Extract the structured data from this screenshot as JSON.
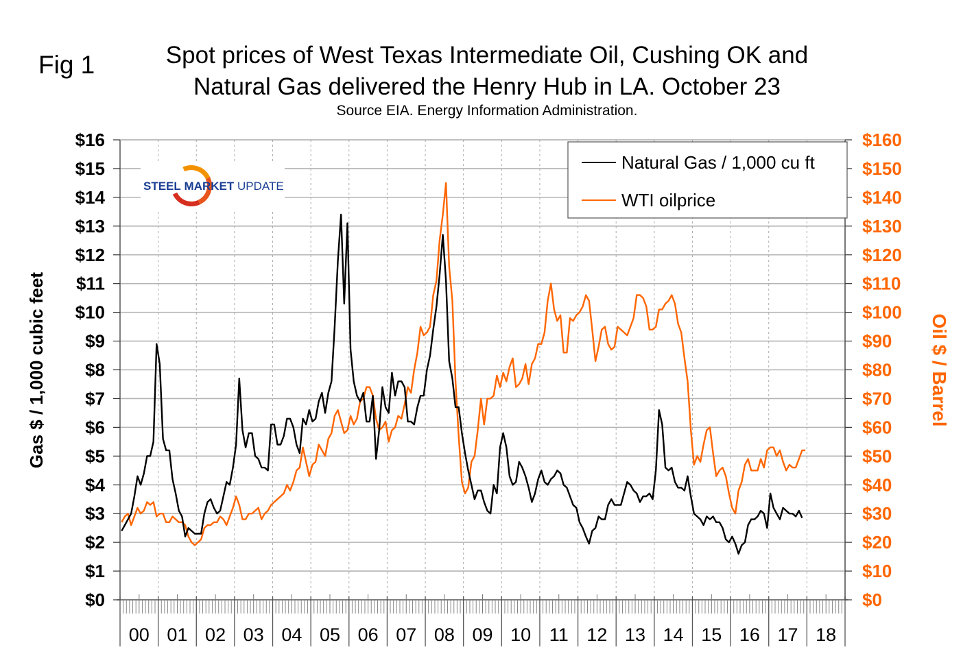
{
  "figure_label": "Fig 1",
  "logo": {
    "word1": "STEEL",
    "word2": "MARKET",
    "word3": "UPDATE"
  },
  "chart_data": {
    "type": "line",
    "title": "Spot prices of West Texas Intermediate Oil, Cushing OK and Natural Gas delivered the Henry Hub in LA. October 23",
    "title_line1": "Spot prices of West Texas Intermediate Oil, Cushing OK and",
    "title_line2": "Natural Gas delivered the Henry Hub in LA. October 23",
    "subtitle": "Source EIA. Energy Information Administration.",
    "ylabel_left": "Gas $ / 1,000 cubic feet",
    "ylabel_right": "Oil $ / Barrel",
    "ylim_left": [
      0,
      16
    ],
    "ylim_right": [
      0,
      160
    ],
    "yticks_left": [
      "$0",
      "$1",
      "$2",
      "$3",
      "$4",
      "$5",
      "$6",
      "$7",
      "$8",
      "$9",
      "$10",
      "$11",
      "$12",
      "$13",
      "$14",
      "$15",
      "$16"
    ],
    "yticks_right": [
      "$0",
      "$10",
      "$20",
      "$30",
      "$40",
      "$50",
      "$60",
      "$70",
      "$80",
      "$90",
      "$100",
      "$110",
      "$120",
      "$130",
      "$140",
      "$150",
      "$160"
    ],
    "x_categories": [
      "00",
      "01",
      "02",
      "03",
      "04",
      "05",
      "06",
      "07",
      "08",
      "09",
      "10",
      "11",
      "12",
      "13",
      "14",
      "15",
      "16",
      "17",
      "18"
    ],
    "x_unit": "monthly, Jan 2000 onward",
    "grid": true,
    "legend_position": "top-right",
    "series": [
      {
        "name": "Natural Gas / 1,000 cu ft",
        "axis": "left",
        "color": "#000000",
        "values": [
          2.4,
          2.6,
          2.8,
          3.0,
          3.6,
          4.3,
          4.0,
          4.4,
          5.0,
          5.0,
          5.5,
          8.9,
          8.2,
          5.6,
          5.2,
          5.2,
          4.2,
          3.7,
          3.1,
          2.9,
          2.2,
          2.5,
          2.4,
          2.3,
          2.3,
          2.3,
          3.0,
          3.4,
          3.5,
          3.2,
          3.0,
          3.1,
          3.6,
          4.1,
          4.0,
          4.6,
          5.4,
          7.7,
          5.9,
          5.3,
          5.8,
          5.8,
          5.0,
          4.9,
          4.6,
          4.6,
          4.5,
          6.1,
          6.1,
          5.4,
          5.4,
          5.7,
          6.3,
          6.3,
          6.0,
          5.4,
          5.1,
          6.3,
          6.1,
          6.6,
          6.2,
          6.3,
          6.9,
          7.2,
          6.5,
          7.2,
          7.6,
          9.5,
          11.8,
          13.4,
          10.3,
          13.1,
          8.7,
          7.6,
          7.1,
          6.9,
          7.2,
          6.2,
          6.2,
          7.1,
          4.9,
          5.9,
          7.4,
          6.7,
          6.5,
          7.9,
          7.1,
          7.6,
          7.6,
          7.4,
          6.2,
          6.2,
          6.1,
          6.7,
          7.1,
          7.1,
          8.0,
          8.5,
          9.4,
          10.2,
          11.3,
          12.7,
          11.1,
          8.3,
          7.7,
          6.7,
          6.7,
          5.8,
          5.1,
          4.5,
          4.0,
          3.5,
          3.8,
          3.8,
          3.4,
          3.1,
          3.0,
          4.0,
          3.7,
          5.3,
          5.8,
          5.3,
          4.3,
          4.0,
          4.1,
          4.8,
          4.6,
          4.3,
          3.9,
          3.4,
          3.7,
          4.2,
          4.5,
          4.1,
          4.0,
          4.2,
          4.3,
          4.5,
          4.4,
          4.0,
          3.9,
          3.6,
          3.3,
          3.2,
          2.7,
          2.5,
          2.2,
          1.95,
          2.4,
          2.5,
          2.9,
          2.8,
          2.8,
          3.3,
          3.5,
          3.3,
          3.3,
          3.3,
          3.7,
          4.1,
          4.0,
          3.8,
          3.7,
          3.4,
          3.6,
          3.6,
          3.7,
          3.5,
          4.5,
          6.6,
          6.1,
          4.6,
          4.5,
          4.6,
          4.1,
          3.9,
          3.9,
          3.8,
          4.3,
          3.6,
          3.0,
          2.9,
          2.8,
          2.6,
          2.9,
          2.8,
          2.9,
          2.7,
          2.7,
          2.5,
          2.1,
          2.0,
          2.2,
          1.95,
          1.6,
          1.9,
          2.0,
          2.6,
          2.8,
          2.8,
          2.9,
          3.1,
          3.0,
          2.5,
          3.7,
          3.2,
          3.0,
          2.8,
          3.2,
          3.1,
          3.0,
          3.0,
          2.9,
          3.1,
          2.85
        ]
      },
      {
        "name": "WTI oilprice",
        "axis": "right",
        "color": "#ff6600",
        "values": [
          27,
          29,
          30,
          26,
          29,
          32,
          30,
          31,
          34,
          33,
          34,
          29,
          30,
          30,
          27,
          27,
          29,
          28,
          27,
          27,
          26,
          22,
          20,
          19,
          20,
          21,
          25,
          26,
          26,
          27,
          27,
          29,
          28,
          26,
          29,
          32,
          36,
          33,
          28,
          28,
          30,
          30,
          31,
          32,
          28,
          30,
          31,
          33,
          34,
          35,
          36,
          37,
          40,
          38,
          41,
          45,
          46,
          53,
          48,
          43,
          47,
          48,
          54,
          52,
          50,
          56,
          58,
          64,
          66,
          62,
          58,
          59,
          64,
          61,
          63,
          69,
          70,
          74,
          74,
          71,
          63,
          59,
          60,
          62,
          55,
          59,
          60,
          64,
          63,
          68,
          74,
          72,
          80,
          86,
          95,
          92,
          93,
          95,
          106,
          111,
          125,
          134,
          145,
          116,
          104,
          76,
          57,
          41,
          37,
          39,
          48,
          50,
          59,
          70,
          61,
          70,
          70,
          71,
          78,
          74,
          79,
          76,
          81,
          84,
          74,
          75,
          77,
          82,
          75,
          82,
          84,
          89,
          89,
          93,
          104,
          110,
          101,
          97,
          99,
          86,
          86,
          98,
          97,
          99,
          100,
          102,
          106,
          104,
          94,
          83,
          88,
          94,
          95,
          89,
          87,
          88,
          95,
          94,
          93,
          92,
          95,
          98,
          106,
          106,
          105,
          102,
          94,
          94,
          95,
          101,
          101,
          103,
          104,
          106,
          103,
          96,
          93,
          84,
          76,
          59,
          47,
          50,
          48,
          54,
          59,
          60,
          51,
          43,
          45,
          46,
          43,
          37,
          32,
          30,
          38,
          41,
          47,
          49,
          45,
          45,
          45,
          49,
          46,
          52,
          53,
          53,
          50,
          52,
          48,
          45,
          47,
          46,
          46,
          49,
          52,
          52
        ]
      }
    ]
  }
}
